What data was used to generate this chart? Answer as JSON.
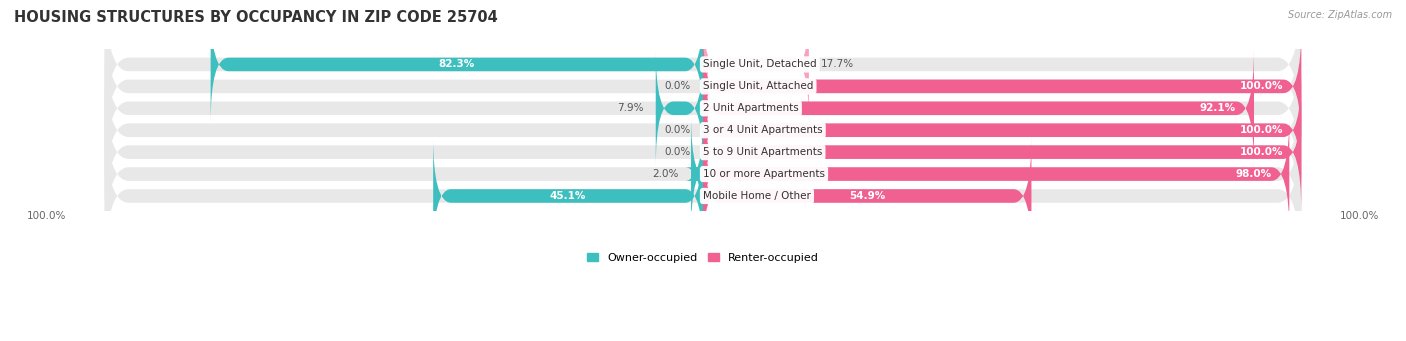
{
  "title": "HOUSING STRUCTURES BY OCCUPANCY IN ZIP CODE 25704",
  "source": "Source: ZipAtlas.com",
  "categories": [
    "Single Unit, Detached",
    "Single Unit, Attached",
    "2 Unit Apartments",
    "3 or 4 Unit Apartments",
    "5 to 9 Unit Apartments",
    "10 or more Apartments",
    "Mobile Home / Other"
  ],
  "owner_pct": [
    82.3,
    0.0,
    7.9,
    0.0,
    0.0,
    2.0,
    45.1
  ],
  "renter_pct": [
    17.7,
    100.0,
    92.1,
    100.0,
    100.0,
    98.0,
    54.9
  ],
  "owner_color": "#3DBFBF",
  "renter_color": "#F06090",
  "renter_color_light": "#F9A0C0",
  "owner_label": "Owner-occupied",
  "renter_label": "Renter-occupied",
  "bg_row_color": "#f0f0f0",
  "bar_gap": 0.18,
  "title_fontsize": 10.5,
  "pct_fontsize": 7.5,
  "cat_fontsize": 7.5,
  "axis_fontsize": 7.5,
  "source_fontsize": 7
}
